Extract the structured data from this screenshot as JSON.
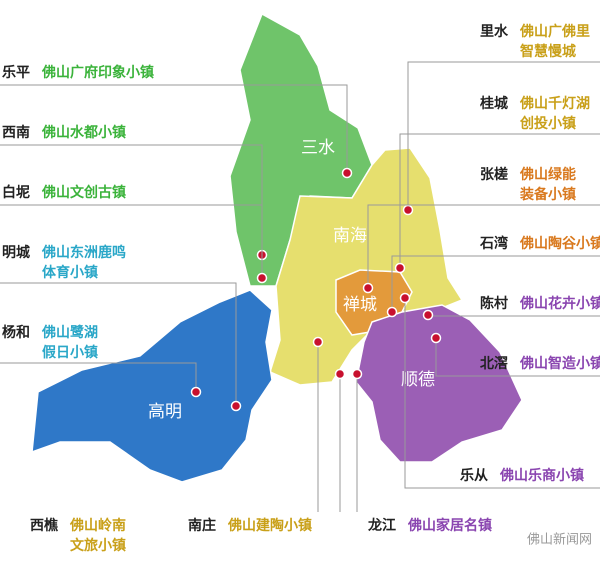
{
  "districts": [
    {
      "name": "三水"
    },
    {
      "name": "南海"
    },
    {
      "name": "禅城"
    },
    {
      "name": "顺德"
    },
    {
      "name": "高明"
    }
  ],
  "towns": [
    {
      "place": "乐平",
      "name": [
        "佛山广府印象小镇"
      ]
    },
    {
      "place": "西南",
      "name": [
        "佛山水都小镇"
      ]
    },
    {
      "place": "白坭",
      "name": [
        "佛山文创古镇"
      ]
    },
    {
      "place": "明城",
      "name": [
        "佛山东洲鹿鸣",
        "体育小镇"
      ]
    },
    {
      "place": "杨和",
      "name": [
        "佛山鹭湖",
        "假日小镇"
      ]
    },
    {
      "place": "西樵",
      "name": [
        "佛山岭南",
        "文旅小镇"
      ]
    },
    {
      "place": "南庄",
      "name": [
        "佛山建陶小镇"
      ]
    },
    {
      "place": "龙江",
      "name": [
        "佛山家居名镇"
      ]
    },
    {
      "place": "里水",
      "name": [
        "佛山广佛里",
        "智慧慢城"
      ]
    },
    {
      "place": "桂城",
      "name": [
        "佛山千灯湖",
        "创投小镇"
      ]
    },
    {
      "place": "张槎",
      "name": [
        "佛山绿能",
        "装备小镇"
      ]
    },
    {
      "place": "石湾",
      "name": [
        "佛山陶谷小镇"
      ]
    },
    {
      "place": "陈村",
      "name": [
        "佛山花卉小镇"
      ]
    },
    {
      "place": "北滘",
      "name": [
        "佛山智造小镇"
      ]
    },
    {
      "place": "乐从",
      "name": [
        "佛山乐商小镇"
      ]
    }
  ],
  "watermark": "佛山新闻网"
}
